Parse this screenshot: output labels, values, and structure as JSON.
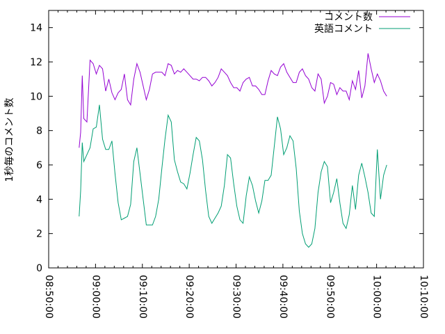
{
  "chart_data": {
    "type": "line",
    "title": "",
    "xlabel": "",
    "ylabel": "1秒毎のコメント数",
    "xlim": [
      "08:50:00",
      "10:10:00"
    ],
    "ylim": [
      0,
      15
    ],
    "x_ticks": [
      "08:50:00",
      "09:00:00",
      "09:10:00",
      "09:20:00",
      "09:30:00",
      "09:40:00",
      "09:50:00",
      "10:00:00",
      "10:10:00"
    ],
    "y_ticks": [
      0,
      2,
      4,
      6,
      8,
      10,
      12,
      14
    ],
    "legend_position": "top-right",
    "grid": false,
    "series": [
      {
        "name": "コメント数",
        "color": "#9400d3",
        "points": [
          [
            "08:56:30",
            7.0
          ],
          [
            "08:56:50",
            7.9
          ],
          [
            "08:57:10",
            11.2
          ],
          [
            "08:57:30",
            8.7
          ],
          [
            "08:58:10",
            8.5
          ],
          [
            "08:58:50",
            12.1
          ],
          [
            "08:59:30",
            11.9
          ],
          [
            "09:00:10",
            11.3
          ],
          [
            "09:00:50",
            11.8
          ],
          [
            "09:01:30",
            11.6
          ],
          [
            "09:02:10",
            10.3
          ],
          [
            "09:02:50",
            11.0
          ],
          [
            "09:03:30",
            10.2
          ],
          [
            "09:04:10",
            9.8
          ],
          [
            "09:04:50",
            10.2
          ],
          [
            "09:05:30",
            10.4
          ],
          [
            "09:06:10",
            11.3
          ],
          [
            "09:06:50",
            9.8
          ],
          [
            "09:07:30",
            9.5
          ],
          [
            "09:08:10",
            11.0
          ],
          [
            "09:08:50",
            11.9
          ],
          [
            "09:09:30",
            11.4
          ],
          [
            "09:10:10",
            10.6
          ],
          [
            "09:10:50",
            9.8
          ],
          [
            "09:11:30",
            10.4
          ],
          [
            "09:12:10",
            11.3
          ],
          [
            "09:12:50",
            11.4
          ],
          [
            "09:13:30",
            11.4
          ],
          [
            "09:14:10",
            11.4
          ],
          [
            "09:14:50",
            11.2
          ],
          [
            "09:15:30",
            11.9
          ],
          [
            "09:16:10",
            11.8
          ],
          [
            "09:16:50",
            11.3
          ],
          [
            "09:17:30",
            11.5
          ],
          [
            "09:18:10",
            11.4
          ],
          [
            "09:18:50",
            11.6
          ],
          [
            "09:19:30",
            11.4
          ],
          [
            "09:20:10",
            11.2
          ],
          [
            "09:20:50",
            11.0
          ],
          [
            "09:21:30",
            11.0
          ],
          [
            "09:22:10",
            10.9
          ],
          [
            "09:22:50",
            11.1
          ],
          [
            "09:23:30",
            11.1
          ],
          [
            "09:24:10",
            10.9
          ],
          [
            "09:24:50",
            10.6
          ],
          [
            "09:25:30",
            10.8
          ],
          [
            "09:26:10",
            11.1
          ],
          [
            "09:26:50",
            11.6
          ],
          [
            "09:27:30",
            11.4
          ],
          [
            "09:28:10",
            11.2
          ],
          [
            "09:28:50",
            10.8
          ],
          [
            "09:29:30",
            10.5
          ],
          [
            "09:30:10",
            10.5
          ],
          [
            "09:30:50",
            10.3
          ],
          [
            "09:31:30",
            10.8
          ],
          [
            "09:32:10",
            11.0
          ],
          [
            "09:32:50",
            11.1
          ],
          [
            "09:33:30",
            10.6
          ],
          [
            "09:34:10",
            10.6
          ],
          [
            "09:34:50",
            10.4
          ],
          [
            "09:35:30",
            10.1
          ],
          [
            "09:36:10",
            10.1
          ],
          [
            "09:36:50",
            10.9
          ],
          [
            "09:37:30",
            11.5
          ],
          [
            "09:38:10",
            11.3
          ],
          [
            "09:38:50",
            11.2
          ],
          [
            "09:39:30",
            11.7
          ],
          [
            "09:40:10",
            11.9
          ],
          [
            "09:40:50",
            11.4
          ],
          [
            "09:41:30",
            11.1
          ],
          [
            "09:42:10",
            10.8
          ],
          [
            "09:42:50",
            10.8
          ],
          [
            "09:43:30",
            11.4
          ],
          [
            "09:44:10",
            11.6
          ],
          [
            "09:44:50",
            11.2
          ],
          [
            "09:45:30",
            11.0
          ],
          [
            "09:46:10",
            10.5
          ],
          [
            "09:46:50",
            10.3
          ],
          [
            "09:47:30",
            11.3
          ],
          [
            "09:48:10",
            11.0
          ],
          [
            "09:48:50",
            9.6
          ],
          [
            "09:49:30",
            10.0
          ],
          [
            "09:50:10",
            10.8
          ],
          [
            "09:50:50",
            10.7
          ],
          [
            "09:51:30",
            10.1
          ],
          [
            "09:52:10",
            10.5
          ],
          [
            "09:52:50",
            10.3
          ],
          [
            "09:53:30",
            10.3
          ],
          [
            "09:54:10",
            9.8
          ],
          [
            "09:54:50",
            10.9
          ],
          [
            "09:55:30",
            10.4
          ],
          [
            "09:56:10",
            11.5
          ],
          [
            "09:56:50",
            9.9
          ],
          [
            "09:57:30",
            10.6
          ],
          [
            "09:58:10",
            12.5
          ],
          [
            "09:58:50",
            11.6
          ],
          [
            "09:59:30",
            10.8
          ],
          [
            "10:00:10",
            11.3
          ],
          [
            "10:00:50",
            10.9
          ],
          [
            "10:01:30",
            10.3
          ],
          [
            "10:02:10",
            10.0
          ]
        ]
      },
      {
        "name": "英語コメント",
        "color": "#009e73",
        "points": [
          [
            "08:56:30",
            3.0
          ],
          [
            "08:56:50",
            4.5
          ],
          [
            "08:57:10",
            7.3
          ],
          [
            "08:57:30",
            6.2
          ],
          [
            "08:58:10",
            6.6
          ],
          [
            "08:58:50",
            7.0
          ],
          [
            "08:59:30",
            8.1
          ],
          [
            "09:00:10",
            8.2
          ],
          [
            "09:00:50",
            9.5
          ],
          [
            "09:01:30",
            7.5
          ],
          [
            "09:02:10",
            6.9
          ],
          [
            "09:02:50",
            6.9
          ],
          [
            "09:03:30",
            7.4
          ],
          [
            "09:04:10",
            5.5
          ],
          [
            "09:04:50",
            3.8
          ],
          [
            "09:05:30",
            2.8
          ],
          [
            "09:06:10",
            2.9
          ],
          [
            "09:06:50",
            3.0
          ],
          [
            "09:07:30",
            3.7
          ],
          [
            "09:08:10",
            6.2
          ],
          [
            "09:08:50",
            7.0
          ],
          [
            "09:09:30",
            5.5
          ],
          [
            "09:10:10",
            4.0
          ],
          [
            "09:10:50",
            2.5
          ],
          [
            "09:11:30",
            2.5
          ],
          [
            "09:12:10",
            2.5
          ],
          [
            "09:12:50",
            3.0
          ],
          [
            "09:13:30",
            4.0
          ],
          [
            "09:14:10",
            5.8
          ],
          [
            "09:14:50",
            7.5
          ],
          [
            "09:15:30",
            8.9
          ],
          [
            "09:16:10",
            8.5
          ],
          [
            "09:16:50",
            6.3
          ],
          [
            "09:17:30",
            5.6
          ],
          [
            "09:18:10",
            5.0
          ],
          [
            "09:18:50",
            4.9
          ],
          [
            "09:19:30",
            4.6
          ],
          [
            "09:20:10",
            5.5
          ],
          [
            "09:20:50",
            6.6
          ],
          [
            "09:21:30",
            7.6
          ],
          [
            "09:22:10",
            7.4
          ],
          [
            "09:22:50",
            6.3
          ],
          [
            "09:23:30",
            4.5
          ],
          [
            "09:24:10",
            3.0
          ],
          [
            "09:24:50",
            2.6
          ],
          [
            "09:25:30",
            2.9
          ],
          [
            "09:26:10",
            3.2
          ],
          [
            "09:26:50",
            3.6
          ],
          [
            "09:27:30",
            4.8
          ],
          [
            "09:28:10",
            6.6
          ],
          [
            "09:28:50",
            6.4
          ],
          [
            "09:29:30",
            4.9
          ],
          [
            "09:30:10",
            3.6
          ],
          [
            "09:30:50",
            2.8
          ],
          [
            "09:31:30",
            2.6
          ],
          [
            "09:32:10",
            4.2
          ],
          [
            "09:32:50",
            5.3
          ],
          [
            "09:33:30",
            4.8
          ],
          [
            "09:34:10",
            3.9
          ],
          [
            "09:34:50",
            3.2
          ],
          [
            "09:35:30",
            3.9
          ],
          [
            "09:36:10",
            5.1
          ],
          [
            "09:36:50",
            5.1
          ],
          [
            "09:37:30",
            5.4
          ],
          [
            "09:38:10",
            7.1
          ],
          [
            "09:38:50",
            8.8
          ],
          [
            "09:39:30",
            8.1
          ],
          [
            "09:40:10",
            6.6
          ],
          [
            "09:40:50",
            7.0
          ],
          [
            "09:41:30",
            7.7
          ],
          [
            "09:42:10",
            7.4
          ],
          [
            "09:42:50",
            5.8
          ],
          [
            "09:43:30",
            3.3
          ],
          [
            "09:44:10",
            2.0
          ],
          [
            "09:44:50",
            1.4
          ],
          [
            "09:45:30",
            1.2
          ],
          [
            "09:46:10",
            1.4
          ],
          [
            "09:46:50",
            2.3
          ],
          [
            "09:47:30",
            4.4
          ],
          [
            "09:48:10",
            5.6
          ],
          [
            "09:48:50",
            6.2
          ],
          [
            "09:49:30",
            5.9
          ],
          [
            "09:50:10",
            3.8
          ],
          [
            "09:50:50",
            4.4
          ],
          [
            "09:51:30",
            5.2
          ],
          [
            "09:52:10",
            3.8
          ],
          [
            "09:52:50",
            2.6
          ],
          [
            "09:53:30",
            2.3
          ],
          [
            "09:54:10",
            3.1
          ],
          [
            "09:54:50",
            4.8
          ],
          [
            "09:55:30",
            3.4
          ],
          [
            "09:56:10",
            5.4
          ],
          [
            "09:56:50",
            6.1
          ],
          [
            "09:57:30",
            5.3
          ],
          [
            "09:58:10",
            4.4
          ],
          [
            "09:58:50",
            3.2
          ],
          [
            "09:59:30",
            3.0
          ],
          [
            "10:00:10",
            6.9
          ],
          [
            "10:00:50",
            4.0
          ],
          [
            "10:01:30",
            5.4
          ],
          [
            "10:02:10",
            6.0
          ]
        ]
      }
    ]
  }
}
